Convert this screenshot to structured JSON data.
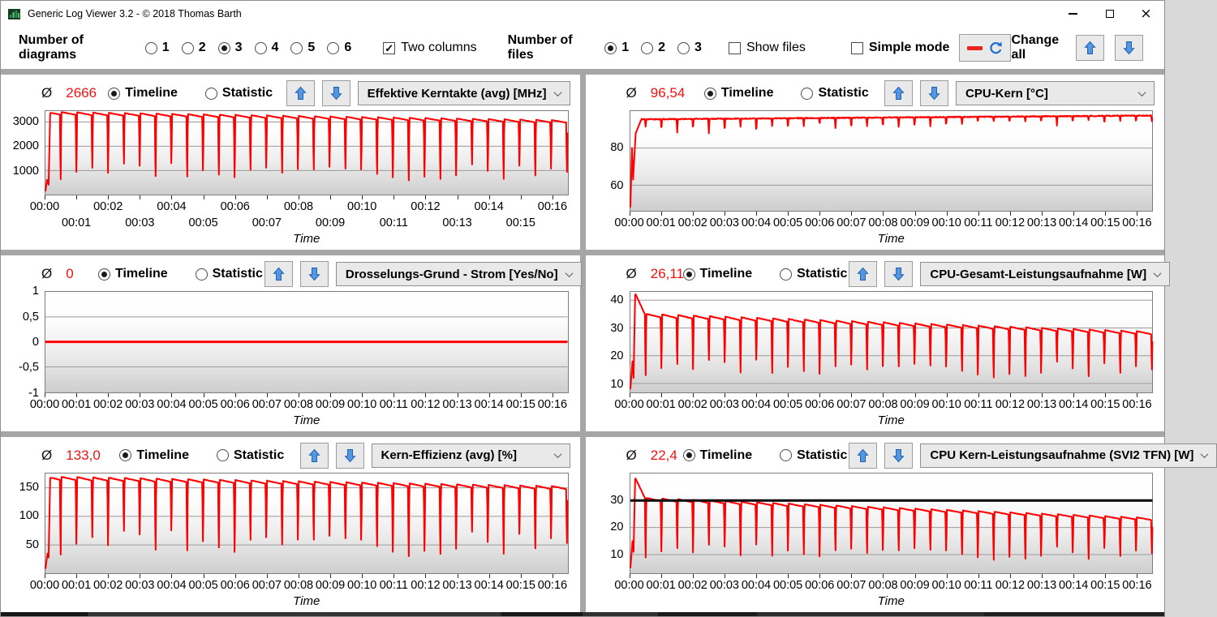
{
  "window": {
    "title": "Generic Log Viewer 3.2 - © 2018 Thomas Barth",
    "controls": {
      "minimize": "minimize",
      "maximize": "maximize",
      "close": "×"
    }
  },
  "toolbar": {
    "diagrams_label": "Number of diagrams",
    "diagram_options": [
      "1",
      "2",
      "3",
      "4",
      "5",
      "6"
    ],
    "diagram_selected": "3",
    "two_columns_label": "Two columns",
    "two_columns_checked": true,
    "check_glyph": "✓",
    "files_label": "Number of files",
    "file_options": [
      "1",
      "2",
      "3"
    ],
    "file_selected": "1",
    "show_files_label": "Show files",
    "show_files_checked": false,
    "simple_mode_label": "Simple mode",
    "simple_mode_checked": false,
    "legend_button_icons": [
      "red-dash-icon",
      "refresh-icon"
    ],
    "change_all_label": "Change all"
  },
  "panel_common": {
    "avg_symbol": "Ø",
    "timeline_label": "Timeline",
    "statistic_label": "Statistic",
    "selected_view": "timeline",
    "time_label": "Time",
    "xticks": [
      "00:00",
      "00:01",
      "00:02",
      "00:03",
      "00:04",
      "00:05",
      "00:06",
      "00:07",
      "00:08",
      "00:09",
      "00:10",
      "00:11",
      "00:12",
      "00:13",
      "00:14",
      "00:15",
      "00:16"
    ],
    "x_total_minutes": 16.5,
    "line_color": "#ff0000",
    "grid_color": "#9b9b9b"
  },
  "panels": [
    {
      "avg": "2666",
      "dropdown": "Effektive Kerntakte (avg) [MHz]",
      "chart": {
        "type": "line",
        "stagger": true,
        "ylim": [
          0,
          3450
        ],
        "yticks": [
          {
            "v": 1000,
            "label": "1000"
          },
          {
            "v": 2000,
            "label": "2000"
          },
          {
            "v": 3000,
            "label": "3000"
          }
        ],
        "duration_s": 990,
        "period_s": 30,
        "intro": [
          [
            0,
            150
          ],
          [
            3,
            620
          ],
          [
            6,
            420
          ],
          [
            9,
            3340
          ]
        ],
        "plateau": [
          3345,
          3000
        ],
        "dip_abs": [
          150,
          950
        ]
      }
    },
    {
      "avg": "96,54",
      "dropdown": "CPU-Kern [°C]",
      "chart": {
        "type": "line",
        "ylim": [
          46,
          100
        ],
        "yticks": [
          {
            "v": 60,
            "label": "60"
          },
          {
            "v": 80,
            "label": "80"
          }
        ],
        "duration_s": 990,
        "period_s": 30,
        "intro": [
          [
            0,
            48
          ],
          [
            3,
            80
          ],
          [
            5,
            63
          ],
          [
            10,
            88
          ],
          [
            20,
            95
          ]
        ],
        "plateau": [
          95.5,
          97.6
        ],
        "dip_depth": [
          4,
          9
        ],
        "dip_shrink": 0.55
      }
    },
    {
      "avg": "0",
      "dropdown": "Drosselungs-Grund - Strom [Yes/No]",
      "chart": {
        "type": "line",
        "ylim": [
          -1,
          1
        ],
        "yticks": [
          {
            "v": 1,
            "label": "1"
          },
          {
            "v": 0.5,
            "label": "0,5"
          },
          {
            "v": 0,
            "label": "0"
          },
          {
            "v": -0.5,
            "label": "-0,5"
          },
          {
            "v": -1,
            "label": "-1"
          }
        ],
        "duration_s": 990,
        "flat_value": 0,
        "line_width": 3
      }
    },
    {
      "avg": "26,11",
      "dropdown": "CPU-Gesamt-Leistungsaufnahme [W]",
      "chart": {
        "type": "line",
        "ylim": [
          7,
          43
        ],
        "yticks": [
          {
            "v": 10,
            "label": "10"
          },
          {
            "v": 20,
            "label": "20"
          },
          {
            "v": 30,
            "label": "30"
          },
          {
            "v": 40,
            "label": "40"
          }
        ],
        "duration_s": 990,
        "period_s": 30,
        "intro": [
          [
            0,
            8
          ],
          [
            4,
            18
          ],
          [
            6,
            12
          ],
          [
            9,
            42
          ]
        ],
        "spike": [
          42,
          30
        ],
        "plateau": [
          34.5,
          28
        ],
        "dip_abs": [
          9,
          16
        ]
      }
    },
    {
      "avg": "133,0",
      "dropdown": "Kern-Effizienz (avg) [%]",
      "chart": {
        "type": "line",
        "ylim": [
          0,
          175
        ],
        "yticks": [
          {
            "v": 50,
            "label": "50"
          },
          {
            "v": 100,
            "label": "100"
          },
          {
            "v": 150,
            "label": "150"
          }
        ],
        "duration_s": 990,
        "period_s": 30,
        "intro": [
          [
            0,
            8
          ],
          [
            4,
            35
          ],
          [
            6,
            28
          ],
          [
            9,
            166
          ]
        ],
        "plateau": [
          166,
          149
        ],
        "dip_abs": [
          8,
          60
        ]
      }
    },
    {
      "avg": "22,4",
      "dropdown": "CPU Kern-Leistungsaufnahme (SVI2 TFN) [W]",
      "chart": {
        "type": "line",
        "ylim": [
          3,
          40
        ],
        "yticks": [
          {
            "v": 10,
            "label": "10"
          },
          {
            "v": 20,
            "label": "20"
          },
          {
            "v": 30,
            "label": "30"
          }
        ],
        "duration_s": 990,
        "period_s": 30,
        "intro": [
          [
            0,
            5
          ],
          [
            4,
            15
          ],
          [
            6,
            11
          ],
          [
            9,
            38
          ]
        ],
        "spike": [
          38,
          30
        ],
        "plateau": [
          30.5,
          23
        ],
        "dip_abs": [
          5,
          11
        ],
        "hline": 30,
        "hline_color": "#111111"
      }
    }
  ]
}
